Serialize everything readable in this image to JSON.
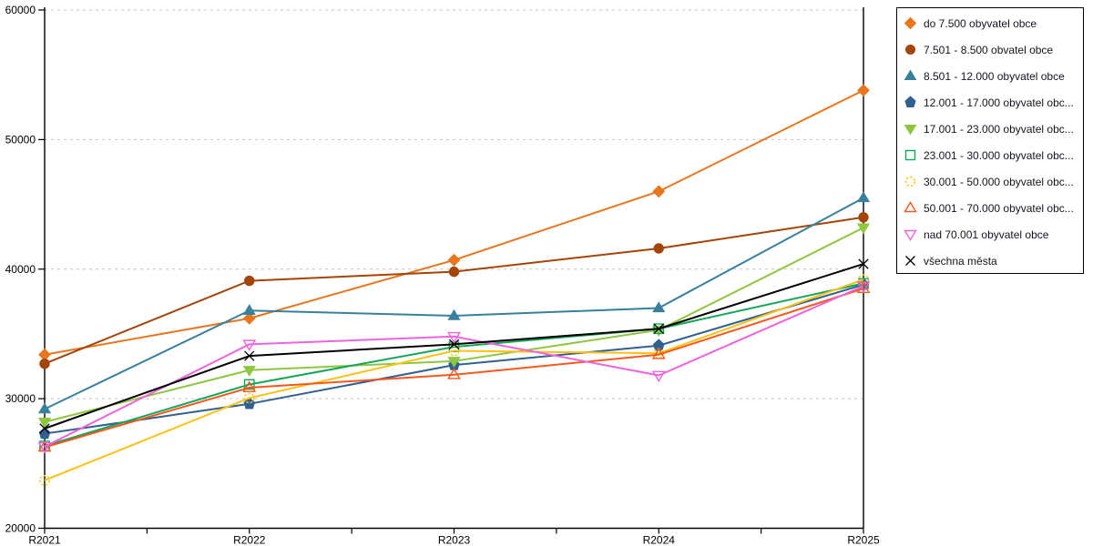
{
  "chart_data": {
    "type": "line",
    "title": "",
    "xlabel": "",
    "ylabel": "",
    "categories": [
      "R2021",
      "R2022",
      "R2023",
      "R2024",
      "R2025"
    ],
    "ylim": [
      20000,
      60000
    ],
    "ytick_step": 10000,
    "ytick_labels": [
      "20000",
      "30000",
      "40000",
      "50000",
      "60000"
    ],
    "grid": "horizontal-dotted",
    "gridline_color": "#c4c4c4",
    "axis_color": "#000000",
    "legend_position": "right",
    "series": [
      {
        "name": "do 7.500 obyvatel obce",
        "color": "#e8761e",
        "marker": "diamond",
        "fill": "solid",
        "values": [
          33400,
          36200,
          40700,
          46000,
          53800
        ]
      },
      {
        "name": "7.501 - 8.500 obvatel obce",
        "color": "#a34408",
        "marker": "circle",
        "fill": "solid",
        "values": [
          32700,
          39100,
          39800,
          41600,
          44000
        ]
      },
      {
        "name": "8.501 - 12.000 obyvatel obce",
        "color": "#38809c",
        "marker": "triangle-up",
        "fill": "solid",
        "values": [
          29200,
          36800,
          36400,
          37000,
          45500
        ]
      },
      {
        "name": "12.001 - 17.000 obyvatel obc...",
        "color": "#30608f",
        "marker": "pentagon",
        "fill": "solid",
        "values": [
          27300,
          29600,
          32600,
          34100,
          38800
        ]
      },
      {
        "name": "17.001 - 23.000 obyvatel obc...",
        "color": "#8fc640",
        "marker": "triangle-down",
        "fill": "solid",
        "values": [
          28200,
          32200,
          32900,
          35300,
          43200
        ]
      },
      {
        "name": "23.001 - 30.000 obyvatel obc...",
        "color": "#13a65a",
        "marker": "square",
        "fill": "outline",
        "values": [
          26350,
          31100,
          34000,
          35400,
          38900
        ]
      },
      {
        "name": "30.001 - 50.000 obyvatel obc...",
        "color": "#fdc113",
        "marker": "circle-dashed",
        "fill": "outline",
        "values": [
          23700,
          30050,
          33700,
          33500,
          39200
        ]
      },
      {
        "name": "50.001 - 70.000 obyvatel obc...",
        "color": "#f4581c",
        "marker": "triangle-up",
        "fill": "outline",
        "values": [
          26250,
          30850,
          31850,
          33400,
          38500
        ]
      },
      {
        "name": "nad 70.001 obyvatel obce",
        "color": "#ee64dc",
        "marker": "triangle-down",
        "fill": "outline",
        "values": [
          26300,
          34200,
          34800,
          31800,
          38700
        ]
      },
      {
        "name": "všechna města",
        "color": "#000000",
        "marker": "x",
        "fill": "outline",
        "values": [
          27700,
          33300,
          34200,
          35400,
          40400
        ]
      }
    ]
  }
}
